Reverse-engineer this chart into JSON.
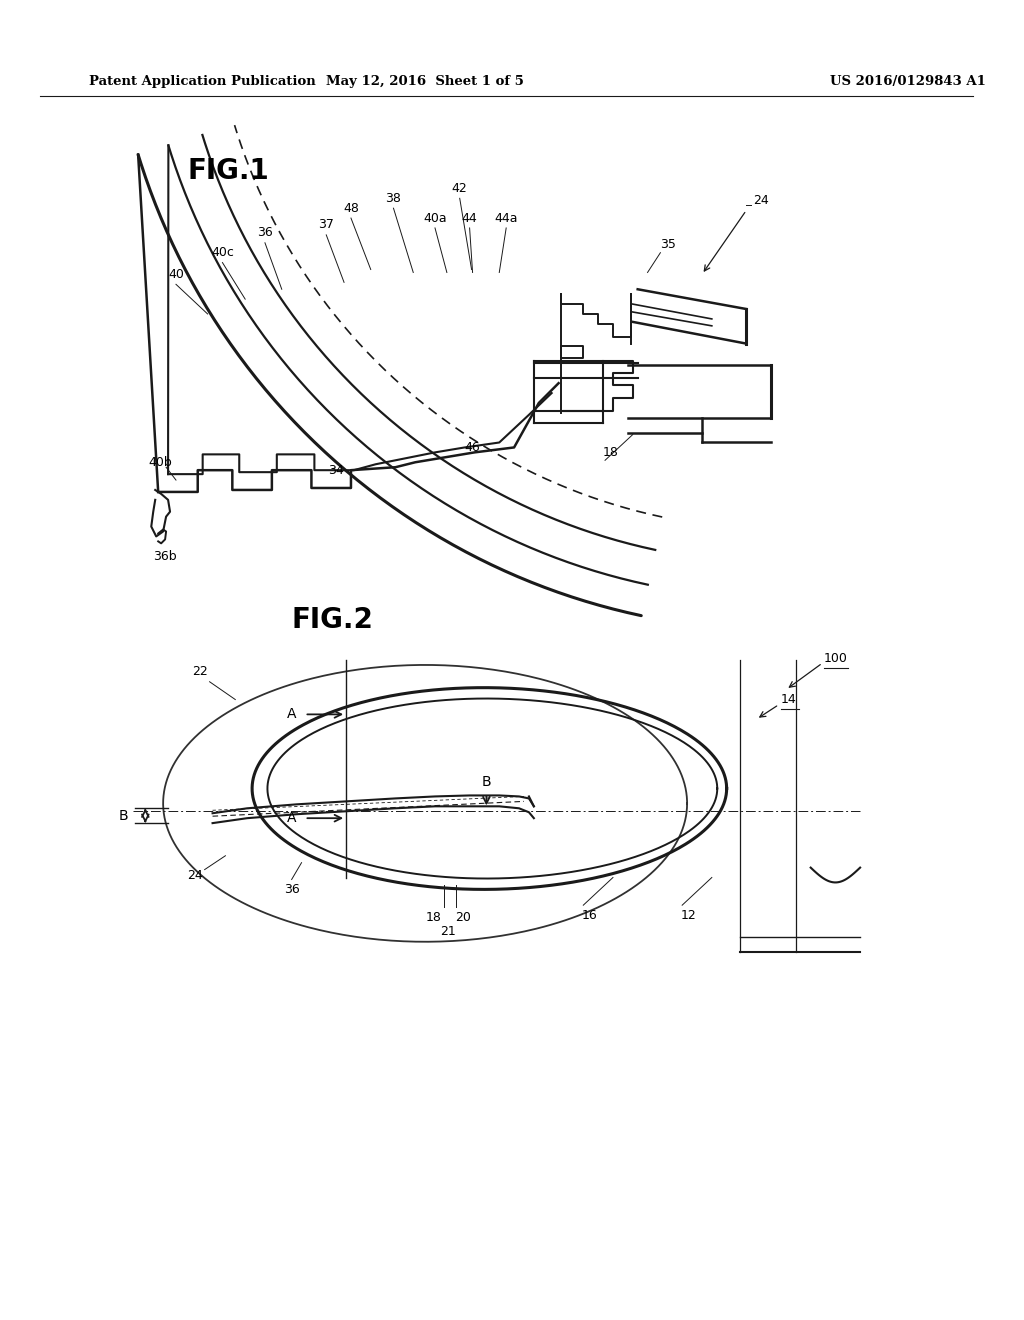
{
  "header_left": "Patent Application Publication",
  "header_mid": "May 12, 2016  Sheet 1 of 5",
  "header_right": "US 2016/0129843 A1",
  "fig1_label": "FIG.1",
  "fig2_label": "FIG.2",
  "bg_color": "#ffffff",
  "line_color": "#1a1a1a",
  "page_width": 10.24,
  "page_height": 13.2
}
